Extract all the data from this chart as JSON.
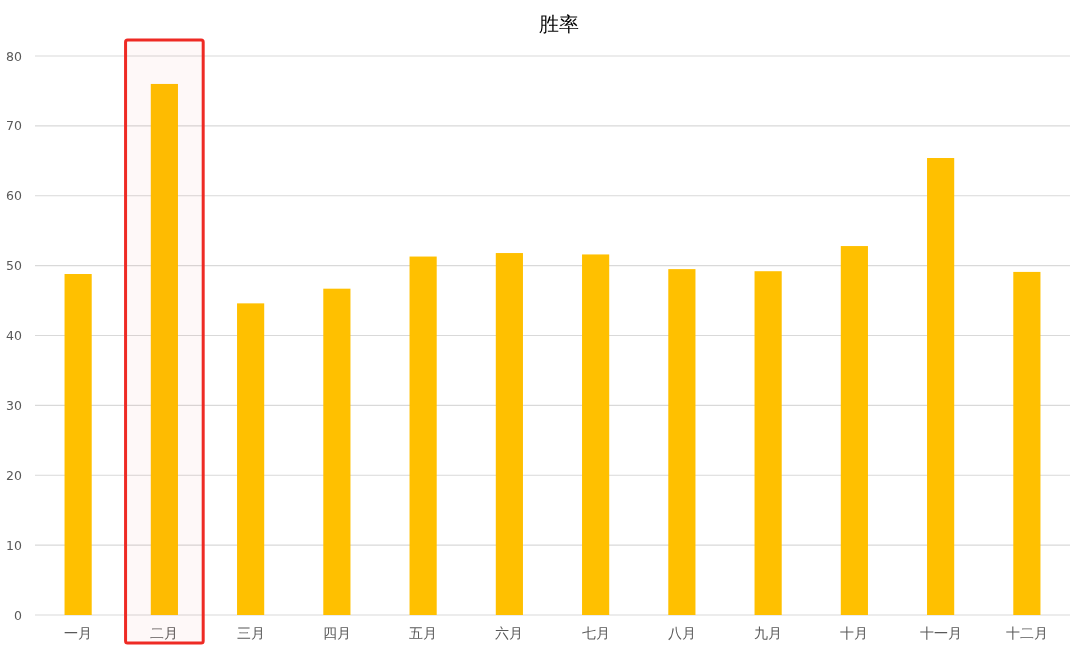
{
  "chart_data": {
    "type": "bar",
    "title": "胜率",
    "categories": [
      "一月",
      "二月",
      "三月",
      "四月",
      "五月",
      "六月",
      "七月",
      "八月",
      "九月",
      "十月",
      "十一月",
      "十二月"
    ],
    "values": [
      48.8,
      76.0,
      44.6,
      46.7,
      51.3,
      51.8,
      51.6,
      49.5,
      49.2,
      52.8,
      65.4,
      49.1
    ],
    "color": "#ffc000",
    "ylim": [
      0,
      80
    ],
    "yticks": [
      0,
      10,
      20,
      30,
      40,
      50,
      60,
      70,
      80
    ],
    "grid": "y",
    "bands": [
      {
        "axis": "x",
        "from": "二月",
        "to": "二月",
        "color": "#ee2a24"
      }
    ]
  }
}
